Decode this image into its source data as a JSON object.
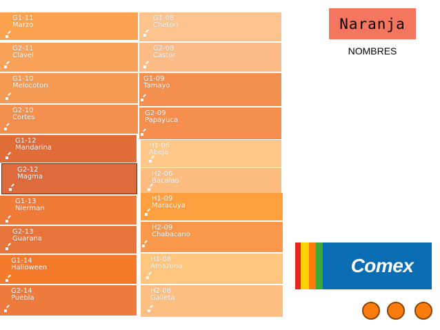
{
  "header": {
    "title": "Naranja",
    "subtitle": "NOMBRES"
  },
  "logo": {
    "text": "Comex",
    "stripes": [
      "#e52521",
      "#fcd100",
      "#fb7c0c",
      "#3aa935",
      "#0a6db4"
    ],
    "box_color": "#0a6db4"
  },
  "swatches_left": [
    {
      "code": "G1-11",
      "name": "Marzo",
      "color": "#fba34e"
    },
    {
      "code": "G2-11",
      "name": "Clavel",
      "color": "#f9a259"
    },
    {
      "code": "G1-10",
      "name": "Melocoton",
      "color": "#f59a52"
    },
    {
      "code": "G2-10",
      "name": "Cortes",
      "color": "#f58f4d"
    },
    {
      "code": "G1-12",
      "name": "Mandarina",
      "color": "#e06c37"
    },
    {
      "code": "G2-12",
      "name": "Magma",
      "color": "#de6b3c"
    },
    {
      "code": "G1-13",
      "name": "Nierman",
      "color": "#f07a38"
    },
    {
      "code": "G2-13",
      "name": "Guarana",
      "color": "#e7753b"
    },
    {
      "code": "G1-14",
      "name": "Halloween",
      "color": "#f57a2c"
    },
    {
      "code": "G2-14",
      "name": "Puebla",
      "color": "#ee7b3d"
    }
  ],
  "swatches_right": [
    {
      "code": "G1-08",
      "name": "Chetori",
      "color": "#fcc38d"
    },
    {
      "code": "G2-08",
      "name": "Castor",
      "color": "#fdbb87"
    },
    {
      "code": "G1-09",
      "name": "Tamayo",
      "color": "#f4904f"
    },
    {
      "code": "G2-09",
      "name": "Papayuca",
      "color": "#f68f4e"
    },
    {
      "code": "H1-06",
      "name": "Abeja",
      "color": "#fec888"
    },
    {
      "code": "H2-06",
      "name": "Bacalao",
      "color": "#fdbd80"
    },
    {
      "code": "H1-09",
      "name": "Maracuya",
      "color": "#fca040"
    },
    {
      "code": "H2-09",
      "name": "Chabacano",
      "color": "#f9984b"
    },
    {
      "code": "H1-08",
      "name": "Amazona",
      "color": "#fec57e"
    },
    {
      "code": "H2-08",
      "name": "Galleta",
      "color": "#fdbe82"
    }
  ],
  "nav_dots": 3
}
